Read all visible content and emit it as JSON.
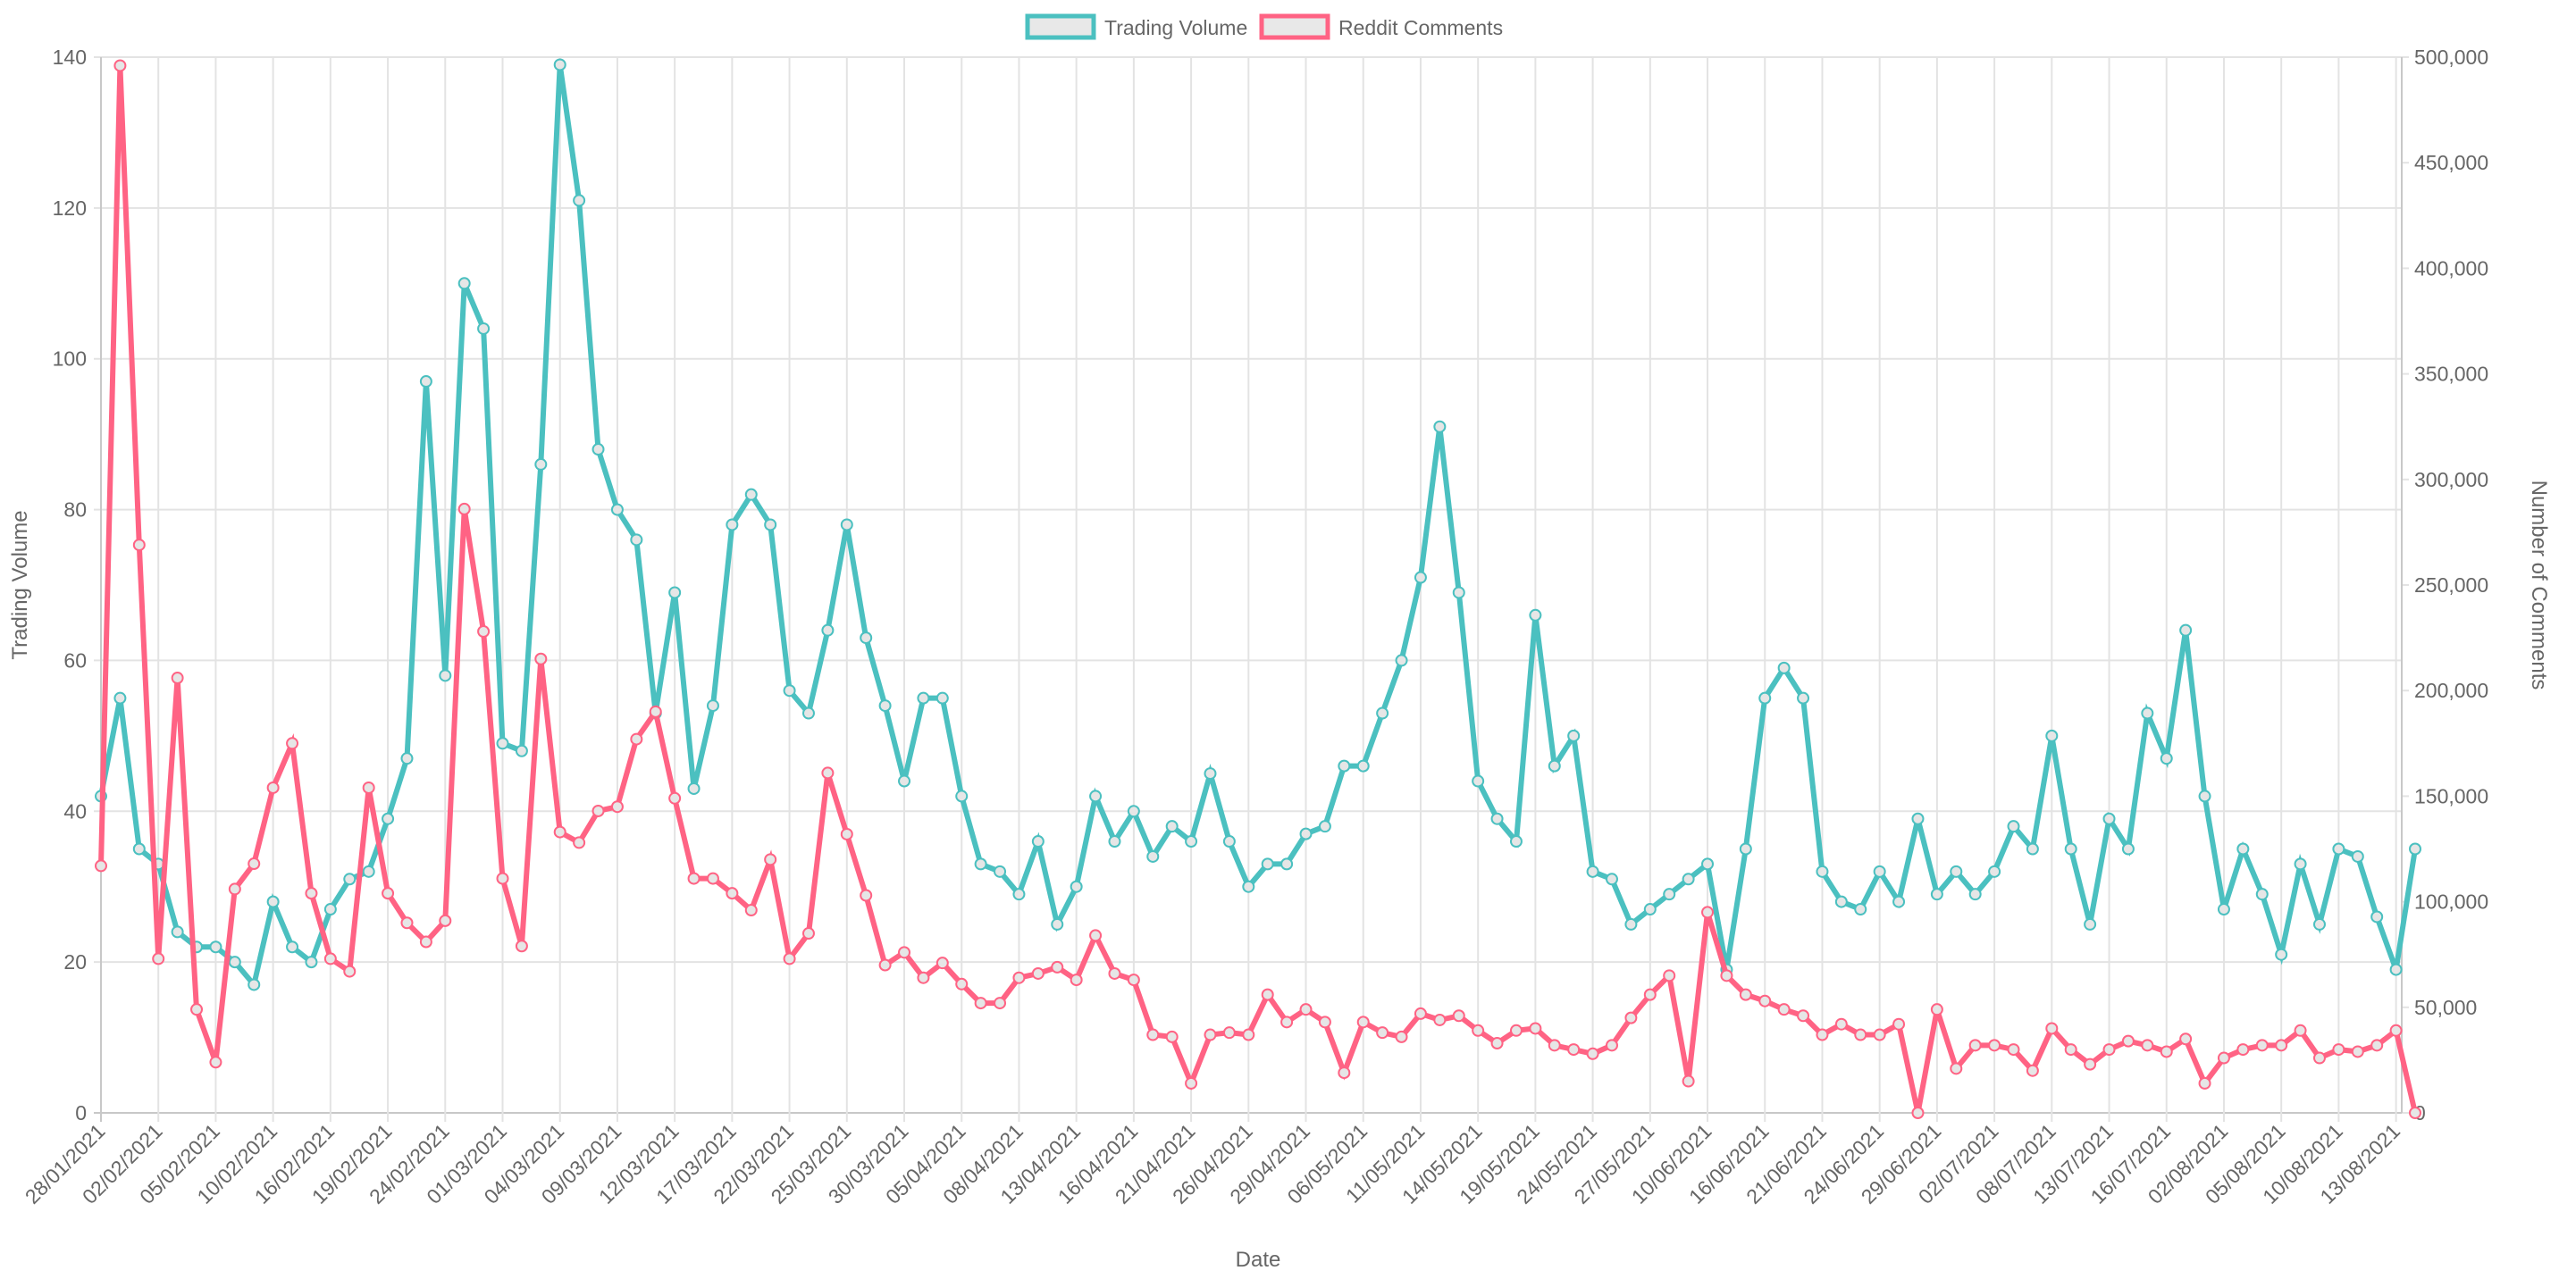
{
  "chart_data": {
    "type": "line",
    "xlabel": "Date",
    "y_left_label": "Trading Volume",
    "y_right_label": "Number of Comments",
    "y_left_range": [
      0,
      140
    ],
    "y_left_ticks": [
      "0",
      "20",
      "40",
      "60",
      "80",
      "100",
      "120",
      "140"
    ],
    "y_right_range": [
      0,
      500000
    ],
    "y_right_ticks": [
      "0",
      "50,000",
      "100,000",
      "150,000",
      "200,000",
      "250,000",
      "300,000",
      "350,000",
      "400,000",
      "450,000",
      "500,000"
    ],
    "grid": true,
    "legend_position": "top",
    "x_tick_labels": [
      "28/01/2021",
      "02/02/2021",
      "05/02/2021",
      "10/02/2021",
      "16/02/2021",
      "19/02/2021",
      "24/02/2021",
      "01/03/2021",
      "04/03/2021",
      "09/03/2021",
      "12/03/2021",
      "17/03/2021",
      "22/03/2021",
      "25/03/2021",
      "30/03/2021",
      "05/04/2021",
      "08/04/2021",
      "13/04/2021",
      "16/04/2021",
      "21/04/2021",
      "26/04/2021",
      "29/04/2021",
      "06/05/2021",
      "11/05/2021",
      "14/05/2021",
      "19/05/2021",
      "24/05/2021",
      "27/05/2021",
      "10/06/2021",
      "16/06/2021",
      "21/06/2021",
      "24/06/2021",
      "29/06/2021",
      "02/07/2021",
      "08/07/2021",
      "13/07/2021",
      "16/07/2021",
      "02/08/2021",
      "05/08/2021",
      "10/08/2021",
      "13/08/2021"
    ],
    "series": [
      {
        "name": "Trading Volume",
        "axis": "left",
        "color": "#4bc0c0",
        "values": [
          42,
          55,
          35,
          33,
          24,
          22,
          22,
          20,
          17,
          28,
          22,
          20,
          27,
          31,
          32,
          39,
          47,
          97,
          58,
          110,
          104,
          49,
          48,
          86,
          139,
          121,
          88,
          80,
          76,
          53,
          69,
          43,
          54,
          78,
          82,
          78,
          56,
          53,
          64,
          78,
          63,
          54,
          44,
          55,
          55,
          42,
          33,
          32,
          29,
          36,
          25,
          30,
          42,
          36,
          40,
          34,
          38,
          36,
          45,
          36,
          30,
          33,
          33,
          37,
          38,
          46,
          46,
          53,
          60,
          71,
          91,
          69,
          44,
          39,
          36,
          66,
          46,
          50,
          32,
          31,
          25,
          27,
          29,
          31,
          33,
          19,
          35,
          55,
          59,
          55,
          32,
          28,
          27,
          32,
          28,
          39,
          29,
          32,
          29,
          32,
          38,
          35,
          50,
          35,
          25,
          39,
          35,
          53,
          47,
          64,
          42,
          27,
          35,
          29,
          21,
          33,
          25,
          35,
          34,
          26,
          19,
          35
        ]
      },
      {
        "name": "Reddit Comments",
        "axis": "right",
        "color": "#ff6384",
        "values": [
          117000,
          496000,
          269000,
          73000,
          206000,
          49000,
          24000,
          106000,
          118000,
          154000,
          175000,
          104000,
          73000,
          67000,
          154000,
          104000,
          90000,
          81000,
          91000,
          286000,
          228000,
          111000,
          79000,
          215000,
          133000,
          128000,
          143000,
          145000,
          177000,
          190000,
          149000,
          111000,
          111000,
          104000,
          96000,
          120000,
          73000,
          85000,
          161000,
          132000,
          103000,
          70000,
          76000,
          64000,
          71000,
          61000,
          52000,
          52000,
          64000,
          66000,
          69000,
          63000,
          84000,
          66000,
          63000,
          37000,
          36000,
          14000,
          37000,
          38000,
          37000,
          56000,
          43000,
          49000,
          43000,
          19000,
          43000,
          38000,
          36000,
          47000,
          44000,
          46000,
          39000,
          33000,
          39000,
          40000,
          32000,
          30000,
          28000,
          32000,
          45000,
          56000,
          65000,
          15000,
          95000,
          65000,
          56000,
          53000,
          49000,
          46000,
          37000,
          42000,
          37000,
          37000,
          42000,
          0,
          49000,
          21000,
          32000,
          32000,
          30000,
          20000,
          40000,
          30000,
          23000,
          30000,
          34000,
          32000,
          29000,
          35000,
          14000,
          26000,
          30000,
          32000,
          32000,
          39000,
          26000,
          30000,
          29000,
          32000,
          39000,
          0
        ]
      }
    ]
  }
}
